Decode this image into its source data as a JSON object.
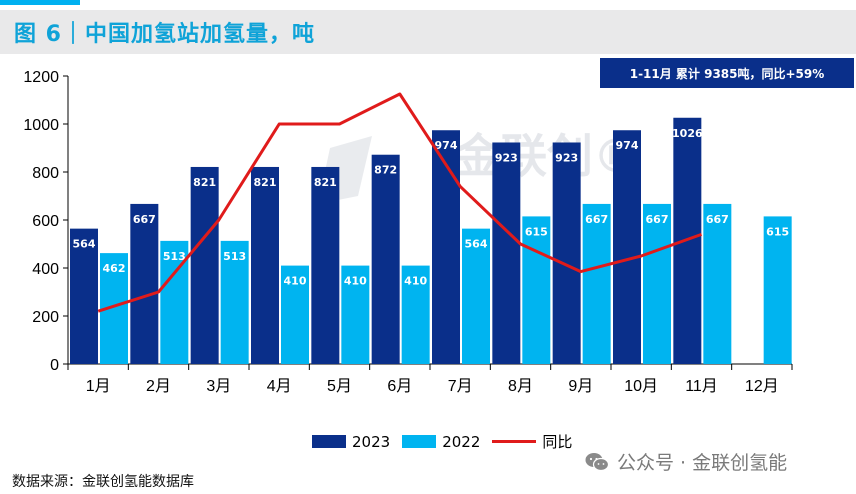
{
  "title": "图 6｜中国加氢站加氢量，吨",
  "summary": "1-11月 累计 9385吨，同比+59%",
  "source": "数据来源：金联创氢能数据库",
  "wechat_label": "公众号 · 金联创氢能",
  "watermark": "金联创®",
  "colors": {
    "series_2023": "#0a2f8a",
    "series_2022": "#00b4f0",
    "yoy_line": "#e01b1b",
    "title": "#0fa3d8"
  },
  "legend": {
    "s2023": "2023",
    "s2022": "2022",
    "yoy": "同比"
  },
  "chart_data": {
    "type": "bar",
    "title": "中国加氢站加氢量，吨",
    "categories": [
      "1月",
      "2月",
      "3月",
      "4月",
      "5月",
      "6月",
      "7月",
      "8月",
      "9月",
      "10月",
      "11月",
      "12月"
    ],
    "series": [
      {
        "name": "2023",
        "values": [
          564,
          667,
          821,
          821,
          821,
          872,
          974,
          923,
          923,
          974,
          1026,
          null
        ]
      },
      {
        "name": "2022",
        "values": [
          462,
          513,
          513,
          410,
          410,
          410,
          564,
          615,
          667,
          667,
          667,
          615
        ]
      }
    ],
    "line_series": {
      "name": "同比",
      "values": [
        220,
        300,
        600,
        1000,
        1000,
        1125,
        740,
        500,
        385,
        450,
        540,
        null
      ]
    },
    "ylim": [
      0,
      1200
    ],
    "yticks": [
      0,
      200,
      400,
      600,
      800,
      1000,
      1200
    ]
  }
}
